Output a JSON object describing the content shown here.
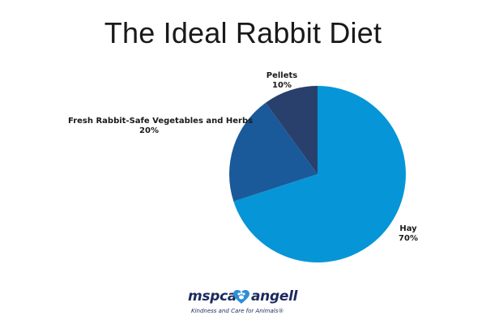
{
  "chart_data": {
    "type": "pie",
    "title": "The Ideal Rabbit Diet",
    "slices": [
      {
        "name": "Hay",
        "value": 70,
        "label": "70%",
        "color": "#0696d7"
      },
      {
        "name": "Fresh Rabbit-Safe Vegetables and Herbs",
        "value": 20,
        "label": "20%",
        "color": "#1b5a9a"
      },
      {
        "name": "Pellets",
        "value": 10,
        "label": "10%",
        "color": "#28406b"
      }
    ]
  },
  "logo": {
    "brand_left": "mspca",
    "brand_right": "angell",
    "tagline": "Kindness and Care for Animals®",
    "color": "#1b2a5e",
    "accent": "#2f8fd6"
  }
}
